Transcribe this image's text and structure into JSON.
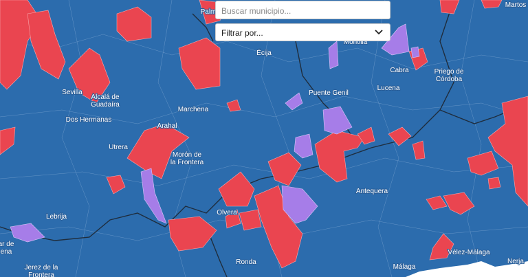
{
  "search": {
    "placeholder": "Buscar municipio..."
  },
  "filter": {
    "label": "Filtrar por..."
  },
  "places": [
    {
      "lines": [
        "Palm"
      ]
    },
    {
      "lines": [
        "Martos"
      ]
    },
    {
      "lines": [
        "Écija"
      ]
    },
    {
      "lines": [
        "Montilla"
      ]
    },
    {
      "lines": [
        "Cabra"
      ]
    },
    {
      "lines": [
        "Priego de",
        "Córdoba"
      ]
    },
    {
      "lines": [
        "Sevilla"
      ]
    },
    {
      "lines": [
        "Alcalá de",
        "Guadaíra"
      ]
    },
    {
      "lines": [
        "Puente Genil"
      ]
    },
    {
      "lines": [
        "Lucena"
      ]
    },
    {
      "lines": [
        "Marchena"
      ]
    },
    {
      "lines": [
        "Dos Hermanas"
      ]
    },
    {
      "lines": [
        "Arahal"
      ]
    },
    {
      "lines": [
        "Utrera"
      ]
    },
    {
      "lines": [
        "Morón de",
        "la Frontera"
      ]
    },
    {
      "lines": [
        "Antequera"
      ]
    },
    {
      "lines": [
        "Lebrija"
      ]
    },
    {
      "lines": [
        "Olvera"
      ]
    },
    {
      "lines": [
        "ar de",
        "ena"
      ]
    },
    {
      "lines": [
        "Vélez-Málaga"
      ]
    },
    {
      "lines": [
        "Ronda"
      ]
    },
    {
      "lines": [
        "Málaga"
      ]
    },
    {
      "lines": [
        "Nerja"
      ]
    },
    {
      "lines": [
        "Jerez de la",
        "Frontera"
      ]
    }
  ]
}
